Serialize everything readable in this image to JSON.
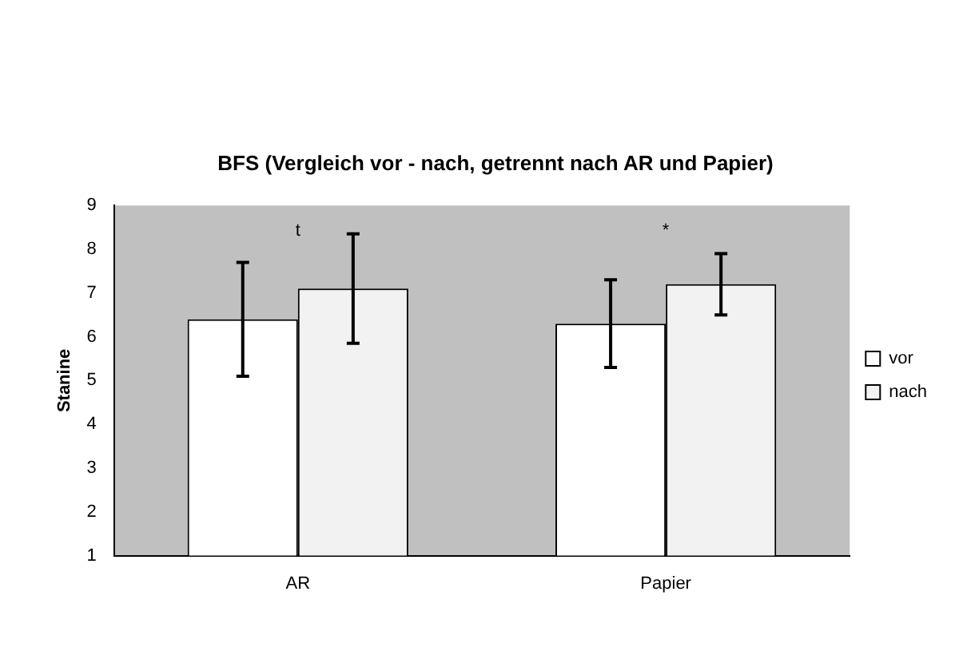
{
  "chart_data": {
    "type": "bar",
    "title": "BFS (Vergleich vor - nach, getrennt nach AR und Papier)",
    "ylabel": "Stanine",
    "categories": [
      "AR",
      "Papier"
    ],
    "series": [
      {
        "name": "vor",
        "color": "#ffffff",
        "values": [
          6.4,
          6.3
        ],
        "errors": [
          1.3,
          1.0
        ]
      },
      {
        "name": "nach",
        "color": "#f2f2f2",
        "values": [
          7.1,
          7.2
        ],
        "errors": [
          1.25,
          0.7
        ]
      }
    ],
    "ylim": [
      1,
      9
    ],
    "yticks": [
      1,
      2,
      3,
      4,
      5,
      6,
      7,
      8,
      9
    ],
    "grid": false,
    "legend": "right",
    "annotations": [
      "t",
      "*"
    ]
  }
}
